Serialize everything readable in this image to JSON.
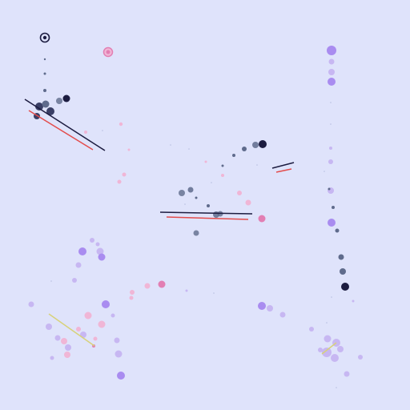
{
  "scene": {
    "background": "#dfe3fb",
    "palette": {
      "navy": "#1c1c40",
      "slate": "#5f6b8c",
      "violet": "#a98cf0",
      "pink": "#e27fb3",
      "red": "#e34c4c",
      "olive": "#d8d27a",
      "lilac": "#c7b7f2"
    }
  },
  "icons": {
    "cursor": "target-reticle-icon",
    "pickup": "pink-ring-orb-icon"
  }
}
